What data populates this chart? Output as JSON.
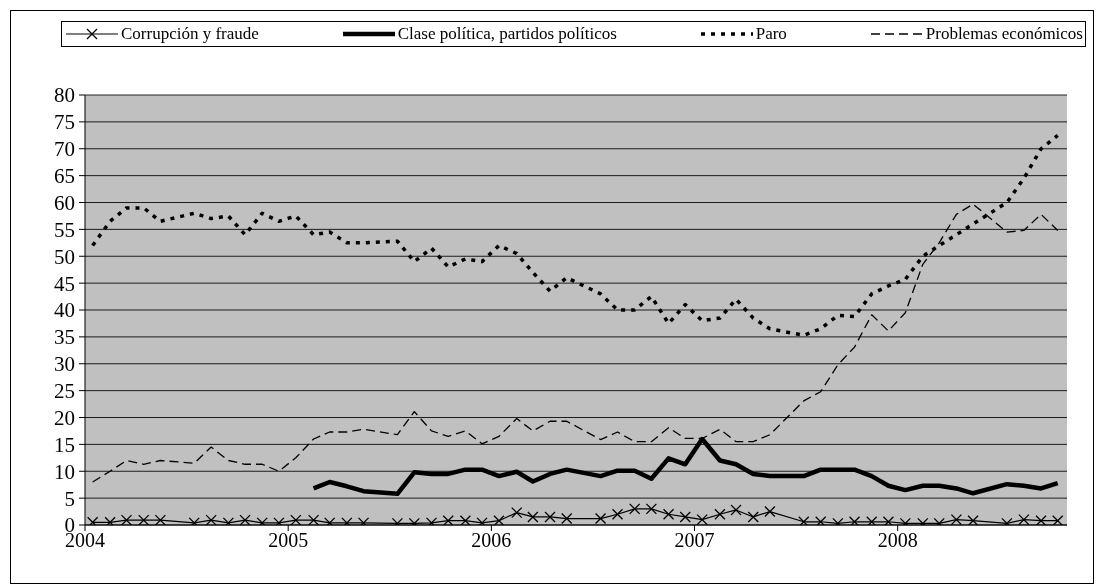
{
  "chart_data": {
    "type": "line",
    "x": [
      "2004-01-15",
      "2004-02-15",
      "2004-03-15",
      "2004-04-15",
      "2004-05-15",
      "2004-07-15",
      "2004-08-15",
      "2004-09-15",
      "2004-10-15",
      "2004-11-15",
      "2004-12-15",
      "2005-01-15",
      "2005-02-15",
      "2005-03-15",
      "2005-04-15",
      "2005-05-15",
      "2005-07-15",
      "2005-08-15",
      "2005-09-15",
      "2005-10-15",
      "2005-11-15",
      "2005-12-15",
      "2006-01-15",
      "2006-02-15",
      "2006-03-15",
      "2006-04-15",
      "2006-05-15",
      "2006-07-15",
      "2006-08-15",
      "2006-09-15",
      "2006-10-15",
      "2006-11-15",
      "2006-12-15",
      "2007-01-15",
      "2007-02-15",
      "2007-03-15",
      "2007-04-15",
      "2007-05-15",
      "2007-07-15",
      "2007-08-15",
      "2007-09-15",
      "2007-10-15",
      "2007-11-15",
      "2007-12-15",
      "2008-01-15",
      "2008-02-15",
      "2008-03-15",
      "2008-04-15",
      "2008-05-15",
      "2008-07-15",
      "2008-08-15",
      "2008-09-15",
      "2008-10-15"
    ],
    "series": [
      {
        "name": "Corrupción y fraude",
        "color": "#000000",
        "line_style": "solid",
        "marker": "cross",
        "values": [
          0.5,
          0.5,
          0.9,
          0.9,
          0.9,
          0.4,
          0.9,
          0.4,
          0.9,
          0.4,
          0.4,
          0.9,
          0.9,
          0.4,
          0.4,
          0.4,
          0.3,
          0.3,
          0.4,
          0.8,
          0.8,
          0.4,
          0.8,
          2.3,
          1.5,
          1.5,
          1.2,
          1.2,
          2,
          3,
          3,
          2,
          1.5,
          1,
          2,
          2.8,
          1.5,
          2.5,
          0.6,
          0.6,
          0.3,
          0.6,
          0.6,
          0.6,
          0.3,
          0.3,
          0.3,
          1,
          0.8,
          0.3,
          1,
          0.8,
          0.8
        ]
      },
      {
        "name": "Clase política, partidos políticos",
        "color": "#000000",
        "line_style": "solid",
        "marker": "none",
        "values": [
          null,
          null,
          null,
          null,
          null,
          null,
          null,
          null,
          null,
          null,
          null,
          null,
          6.8,
          8,
          7.2,
          6.3,
          5.8,
          9.8,
          9.5,
          9.5,
          10.3,
          10.3,
          9.1,
          9.9,
          8.1,
          9.5,
          10.3,
          9.1,
          10.1,
          10.1,
          8.6,
          12.4,
          11.3,
          16,
          12,
          11.3,
          9.5,
          9.1,
          9.1,
          10.3,
          10.3,
          10.3,
          9.1,
          7.3,
          6.5,
          7.3,
          7.3,
          6.8,
          5.9,
          7.6,
          7.3,
          6.8,
          7.8
        ]
      },
      {
        "name": "Paro",
        "color": "#000000",
        "line_style": "dotted",
        "marker": "none",
        "values": [
          52,
          56.5,
          59,
          59,
          56.5,
          58,
          57,
          57.5,
          54,
          58,
          56.5,
          57.5,
          54,
          54.5,
          52.5,
          52.5,
          52.8,
          49,
          51.5,
          48,
          49.5,
          49,
          52,
          50.5,
          47,
          43.5,
          46,
          43,
          40,
          40,
          42.5,
          37.5,
          41,
          38,
          38.5,
          42,
          38.5,
          36.5,
          35.3,
          36.5,
          39,
          38.8,
          43,
          44.5,
          45.7,
          50,
          52,
          54,
          56,
          60,
          64.5,
          70,
          72.5
        ]
      },
      {
        "name": "Problemas económicos",
        "color": "#000000",
        "line_style": "dashed",
        "marker": "none",
        "values": [
          8,
          10,
          12,
          11.3,
          12,
          11.5,
          14.5,
          12,
          11.3,
          11.3,
          10,
          12.5,
          16,
          17.3,
          17.3,
          17.8,
          16.8,
          21.1,
          17.5,
          16.5,
          17.5,
          15.1,
          16.5,
          19.8,
          17.5,
          19.3,
          19.3,
          15.9,
          17.3,
          15.5,
          15.5,
          18.1,
          16.1,
          16.1,
          17.8,
          15.5,
          15.5,
          16.8,
          23.1,
          24.8,
          29.8,
          33.1,
          39.1,
          36.1,
          39.5,
          48.5,
          52.5,
          57.8,
          59.7,
          54.5,
          54.8,
          57.8,
          54.8
        ]
      }
    ],
    "xlim": [
      "2004-01-01",
      "2008-11-01"
    ],
    "xticks": [
      {
        "value": "2004-01-01",
        "label": "2004"
      },
      {
        "value": "2005-01-01",
        "label": "2005"
      },
      {
        "value": "2006-01-01",
        "label": "2006"
      },
      {
        "value": "2007-01-01",
        "label": "2007"
      },
      {
        "value": "2008-01-01",
        "label": "2008"
      }
    ],
    "ylim": [
      0,
      80
    ],
    "yticks": [
      0,
      5,
      10,
      15,
      20,
      25,
      30,
      35,
      40,
      45,
      50,
      55,
      60,
      65,
      70,
      75,
      80
    ],
    "grid": "y",
    "legend": "top"
  }
}
